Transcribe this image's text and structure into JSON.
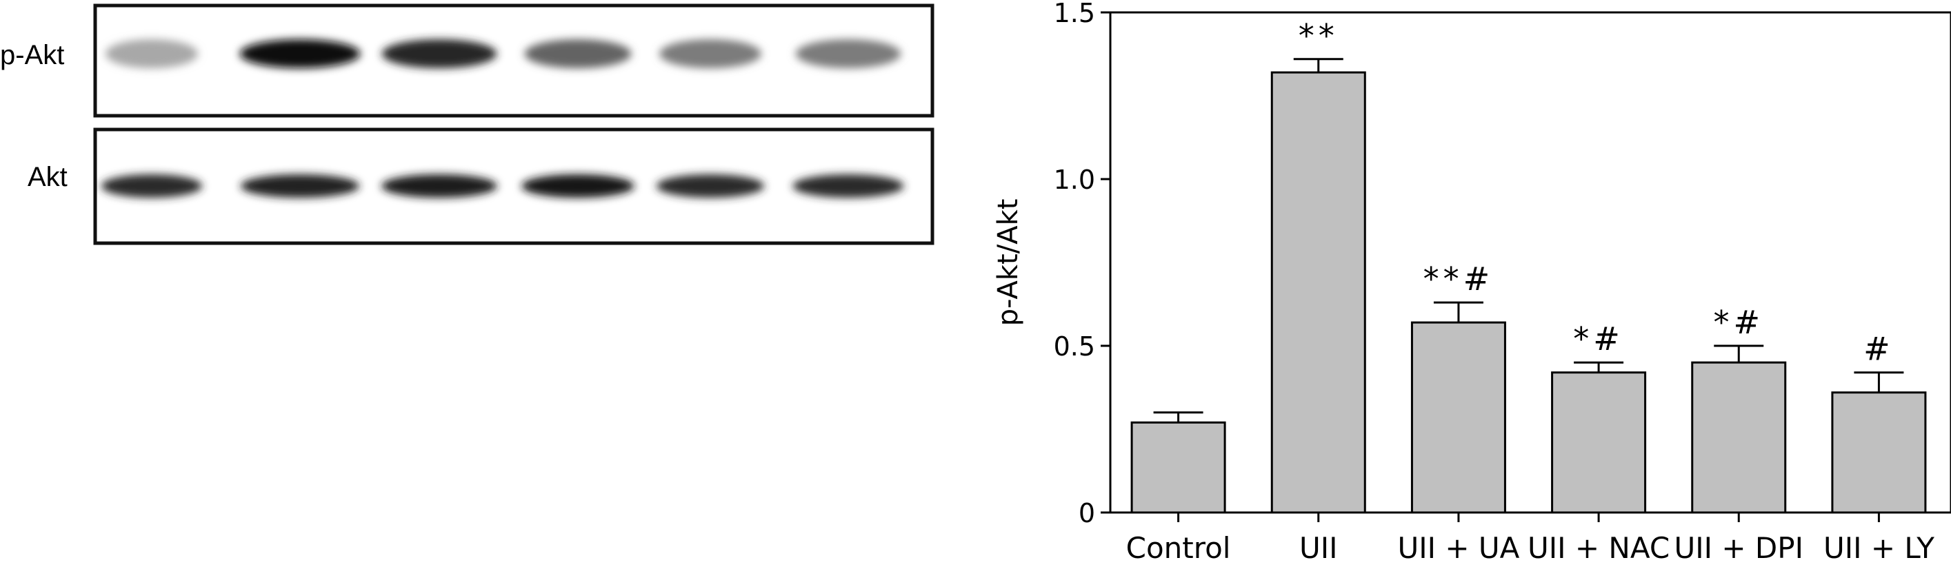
{
  "blot": {
    "panels": [
      {
        "label": "p-Akt",
        "band_intensity": [
          0.3,
          1.0,
          0.88,
          0.6,
          0.5,
          0.5
        ]
      },
      {
        "label": "Akt",
        "band_intensity": [
          0.85,
          0.9,
          0.92,
          0.95,
          0.85,
          0.85
        ]
      }
    ]
  },
  "chart_data": {
    "type": "bar",
    "categories": [
      "Control",
      "UII",
      "UII + UA",
      "UII + NAC",
      "UII + DPI",
      "UII + LY"
    ],
    "values": [
      0.27,
      1.32,
      0.57,
      0.42,
      0.45,
      0.36
    ],
    "errors": [
      0.03,
      0.04,
      0.06,
      0.03,
      0.05,
      0.06
    ],
    "significance": [
      "",
      "**",
      "**#",
      "*#",
      "*#",
      "#"
    ],
    "ylabel": "p-Akt/Akt",
    "ylim": [
      0,
      1.5
    ],
    "yticks": [
      "0",
      "0.5",
      "1.0",
      "1.5"
    ],
    "ytick_values": [
      0,
      0.5,
      1.0,
      1.5
    ],
    "bar_color": "#c0c0c0"
  }
}
